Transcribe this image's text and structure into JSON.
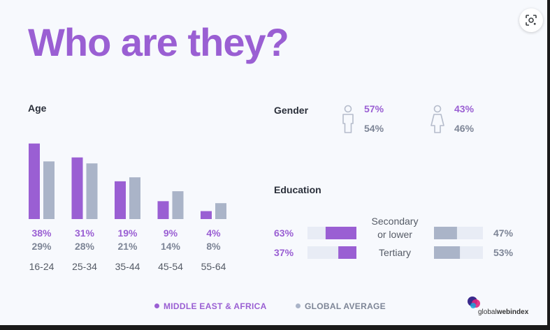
{
  "title": "Who are they?",
  "colors": {
    "primary": "#9a5fd3",
    "secondary": "#aab4c8",
    "track": "#e8ecf5"
  },
  "icons": {
    "lens": "google-lens-icon",
    "male": "male-person-icon",
    "female": "female-person-icon"
  },
  "age": {
    "label": "Age",
    "chart_data": {
      "type": "bar",
      "categories": [
        "16-24",
        "25-34",
        "35-44",
        "45-54",
        "55-64"
      ],
      "series": [
        {
          "name": "MIDDLE EAST & AFRICA",
          "values": [
            38,
            31,
            19,
            9,
            4
          ],
          "labels": [
            "38%",
            "31%",
            "19%",
            "9%",
            "4%"
          ]
        },
        {
          "name": "GLOBAL AVERAGE",
          "values": [
            29,
            28,
            21,
            14,
            8
          ],
          "labels": [
            "29%",
            "28%",
            "21%",
            "14%",
            "8%"
          ]
        }
      ],
      "ylim": [
        0,
        40
      ]
    }
  },
  "gender": {
    "label": "Gender",
    "male": {
      "mea": "57%",
      "global": "54%"
    },
    "female": {
      "mea": "43%",
      "global": "46%"
    }
  },
  "education": {
    "label": "Education",
    "chart_data": {
      "type": "bar",
      "categories": [
        "Secondary or lower",
        "Tertiary"
      ],
      "series": [
        {
          "name": "MIDDLE EAST & AFRICA",
          "values": [
            63,
            37
          ],
          "labels": [
            "63%",
            "37%"
          ]
        },
        {
          "name": "GLOBAL AVERAGE",
          "values": [
            47,
            53
          ],
          "labels": [
            "47%",
            "53%"
          ]
        }
      ]
    },
    "secondary_label_line1": "Secondary",
    "secondary_label_line2": "or lower",
    "tertiary_label": "Tertiary"
  },
  "legend": {
    "mea": "MIDDLE EAST & AFRICA",
    "global": "GLOBAL AVERAGE"
  },
  "logo": {
    "part1": "global",
    "part2": "webindex"
  }
}
